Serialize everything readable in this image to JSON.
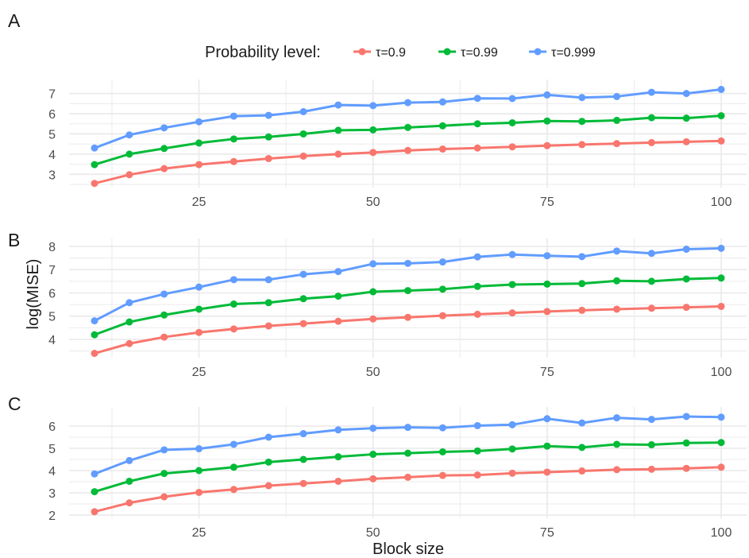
{
  "legend": {
    "title": "Probability level:",
    "position": "top"
  },
  "colors": {
    "t0.9": "#F8766D",
    "t0.99": "#00BA38",
    "t0.999": "#619CFF",
    "grid": "#ebebeb"
  },
  "axes": {
    "xlabel": "Block size",
    "ylabel": "log(MISE)",
    "xticks": [
      25,
      50,
      75,
      100
    ]
  },
  "chart_data": [
    {
      "type": "line",
      "panel": "A",
      "x": [
        10,
        15,
        20,
        25,
        30,
        35,
        40,
        45,
        50,
        55,
        60,
        65,
        70,
        75,
        80,
        85,
        90,
        95,
        100
      ],
      "xlim": [
        10,
        100
      ],
      "ylim": [
        2.5,
        7.3
      ],
      "yticks": [
        3,
        4,
        5,
        6,
        7
      ],
      "series": [
        {
          "name": "τ=0.9",
          "values": [
            2.55,
            2.98,
            3.28,
            3.48,
            3.63,
            3.78,
            3.9,
            4.0,
            4.08,
            4.18,
            4.25,
            4.3,
            4.36,
            4.42,
            4.47,
            4.52,
            4.57,
            4.61,
            4.65
          ]
        },
        {
          "name": "τ=0.99",
          "values": [
            3.48,
            4.0,
            4.28,
            4.55,
            4.75,
            4.85,
            5.0,
            5.18,
            5.2,
            5.32,
            5.4,
            5.5,
            5.55,
            5.64,
            5.62,
            5.67,
            5.8,
            5.78,
            5.9
          ]
        },
        {
          "name": "τ=0.999",
          "values": [
            4.3,
            4.95,
            5.3,
            5.6,
            5.88,
            5.92,
            6.1,
            6.43,
            6.4,
            6.55,
            6.58,
            6.76,
            6.75,
            6.93,
            6.8,
            6.85,
            7.06,
            7.0,
            7.2
          ]
        }
      ]
    },
    {
      "type": "line",
      "panel": "B",
      "x": [
        10,
        15,
        20,
        25,
        30,
        35,
        40,
        45,
        50,
        55,
        60,
        65,
        70,
        75,
        80,
        85,
        90,
        95,
        100
      ],
      "xlim": [
        10,
        100
      ],
      "ylim": [
        3.35,
        8.0
      ],
      "yticks": [
        4,
        5,
        6,
        7,
        8
      ],
      "series": [
        {
          "name": "τ=0.9",
          "values": [
            3.4,
            3.82,
            4.1,
            4.3,
            4.45,
            4.58,
            4.68,
            4.78,
            4.88,
            4.95,
            5.02,
            5.08,
            5.14,
            5.2,
            5.25,
            5.3,
            5.34,
            5.38,
            5.42
          ]
        },
        {
          "name": "τ=0.99",
          "values": [
            4.2,
            4.75,
            5.05,
            5.3,
            5.52,
            5.58,
            5.75,
            5.86,
            6.05,
            6.1,
            6.16,
            6.28,
            6.36,
            6.38,
            6.4,
            6.52,
            6.5,
            6.6,
            6.64
          ]
        },
        {
          "name": "τ=0.999",
          "values": [
            4.8,
            5.58,
            5.95,
            6.25,
            6.57,
            6.57,
            6.8,
            6.92,
            7.25,
            7.27,
            7.33,
            7.55,
            7.65,
            7.6,
            7.56,
            7.8,
            7.7,
            7.88,
            7.92
          ]
        }
      ]
    },
    {
      "type": "line",
      "panel": "C",
      "x": [
        10,
        15,
        20,
        25,
        30,
        35,
        40,
        45,
        50,
        55,
        60,
        65,
        70,
        75,
        80,
        85,
        90,
        95,
        100
      ],
      "xlim": [
        10,
        100
      ],
      "ylim": [
        2.0,
        6.5
      ],
      "yticks": [
        2,
        3,
        4,
        5,
        6
      ],
      "series": [
        {
          "name": "τ=0.9",
          "values": [
            2.15,
            2.55,
            2.82,
            3.02,
            3.15,
            3.32,
            3.42,
            3.52,
            3.63,
            3.7,
            3.78,
            3.8,
            3.88,
            3.93,
            3.98,
            4.04,
            4.06,
            4.1,
            4.15
          ]
        },
        {
          "name": "τ=0.99",
          "values": [
            3.05,
            3.52,
            3.87,
            4.0,
            4.15,
            4.38,
            4.5,
            4.62,
            4.73,
            4.78,
            4.84,
            4.88,
            4.97,
            5.1,
            5.04,
            5.18,
            5.16,
            5.24,
            5.26
          ]
        },
        {
          "name": "τ=0.999",
          "values": [
            3.85,
            4.45,
            4.93,
            4.98,
            5.18,
            5.5,
            5.66,
            5.83,
            5.9,
            5.94,
            5.92,
            6.02,
            6.06,
            6.33,
            6.14,
            6.37,
            6.3,
            6.43,
            6.4
          ]
        }
      ]
    }
  ]
}
